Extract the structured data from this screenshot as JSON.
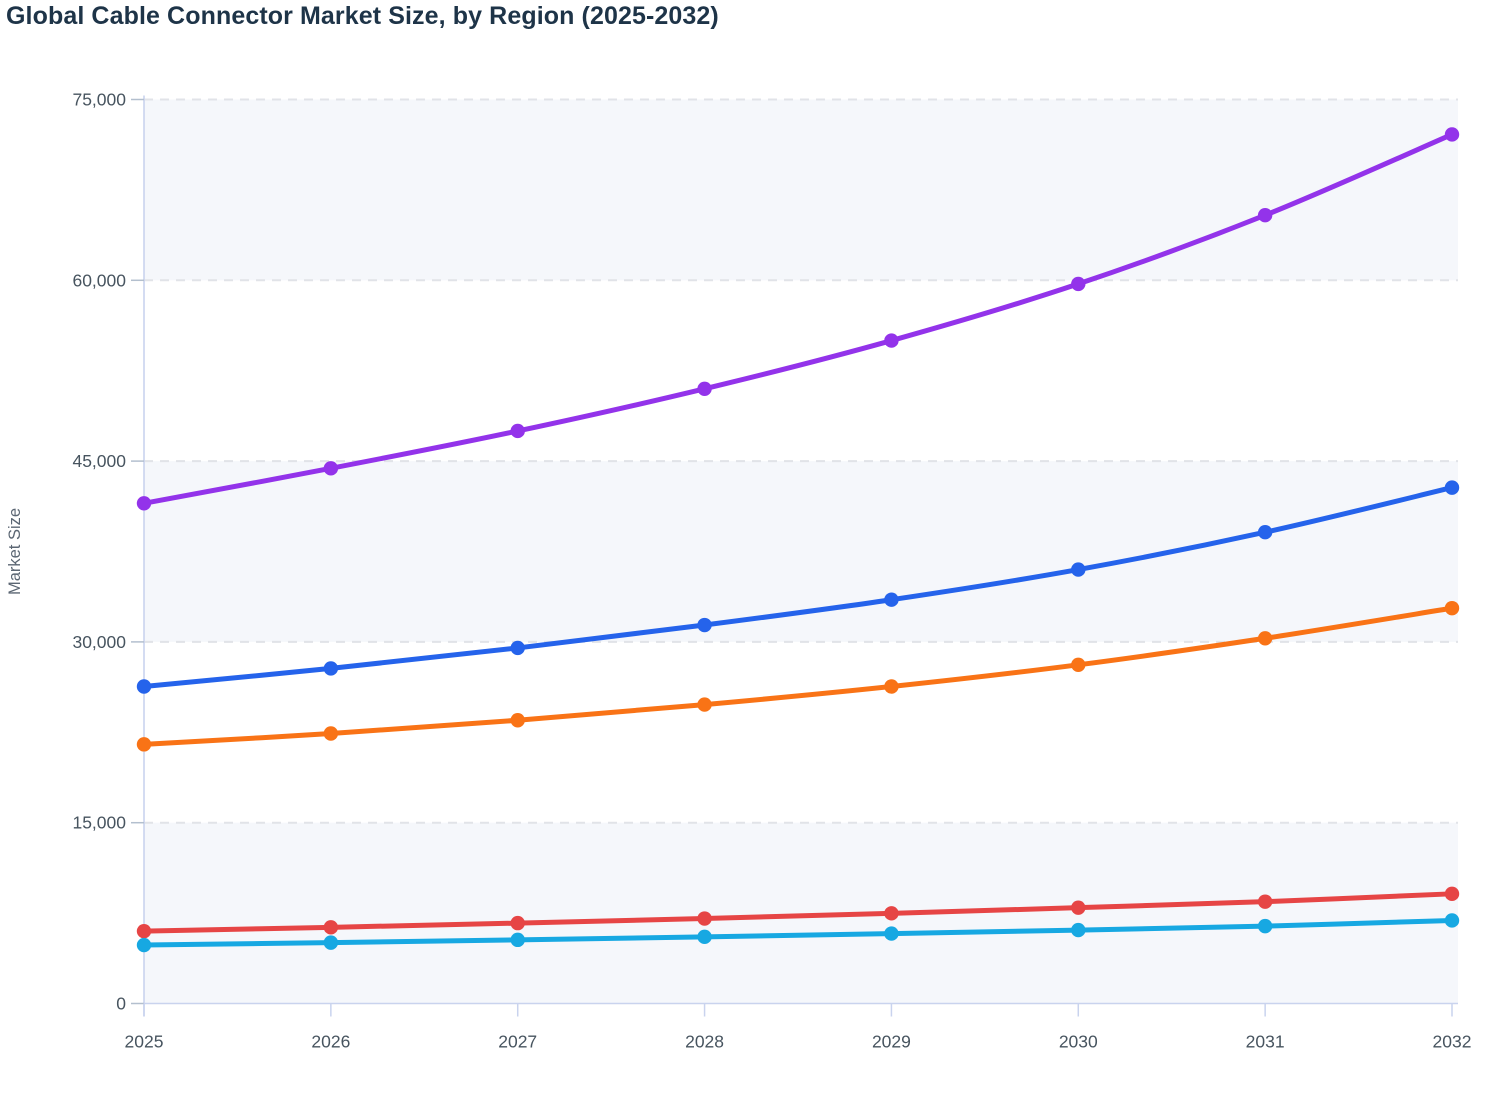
{
  "title": "Global Cable Connector Market Size, by Region (2025-2032)",
  "chart_data": {
    "type": "line",
    "title": "Global Cable Connector Market Size, by Region (2025-2032)",
    "xlabel": "",
    "ylabel": "Market Size",
    "x": [
      2025,
      2026,
      2027,
      2028,
      2029,
      2030,
      2031,
      2032
    ],
    "x_labels": [
      "2025",
      "2026",
      "2027",
      "2028",
      "2029",
      "2030",
      "2031",
      "2032"
    ],
    "ylim": [
      0,
      75000
    ],
    "yticks": [
      0,
      15000,
      30000,
      45000,
      60000,
      75000
    ],
    "ytick_labels": [
      "0",
      "15,000",
      "30,000",
      "45,000",
      "60,000",
      "75,000"
    ],
    "grid": "horizontal-dashed",
    "band_fill_between": [
      [
        0,
        15000
      ],
      [
        30000,
        45000
      ],
      [
        60000,
        75000
      ]
    ],
    "legend": "none",
    "marker": "circle",
    "series": [
      {
        "name": "purple",
        "color": "#9333ea",
        "values": [
          41500,
          44400,
          47500,
          51000,
          55000,
          59700,
          65400,
          72100
        ]
      },
      {
        "name": "blue",
        "color": "#2563eb",
        "values": [
          26300,
          27800,
          29500,
          31400,
          33500,
          36000,
          39100,
          42800
        ]
      },
      {
        "name": "orange",
        "color": "#f97316",
        "values": [
          21500,
          22400,
          23500,
          24800,
          26300,
          28100,
          30300,
          32800
        ]
      },
      {
        "name": "red",
        "color": "#e64545",
        "values": [
          6000,
          6320,
          6670,
          7050,
          7480,
          7950,
          8450,
          9100
        ]
      },
      {
        "name": "cyan",
        "color": "#17a8e2",
        "values": [
          4850,
          5050,
          5280,
          5530,
          5800,
          6090,
          6420,
          6890
        ]
      }
    ],
    "colors": {
      "band": "#f5f7fb",
      "gridline": "#e1e3e8",
      "axis_line": "#c9d3ee",
      "tick_mark": "#b3bfce",
      "tick_text": "#47545f",
      "title_text": "#1e3448"
    }
  }
}
